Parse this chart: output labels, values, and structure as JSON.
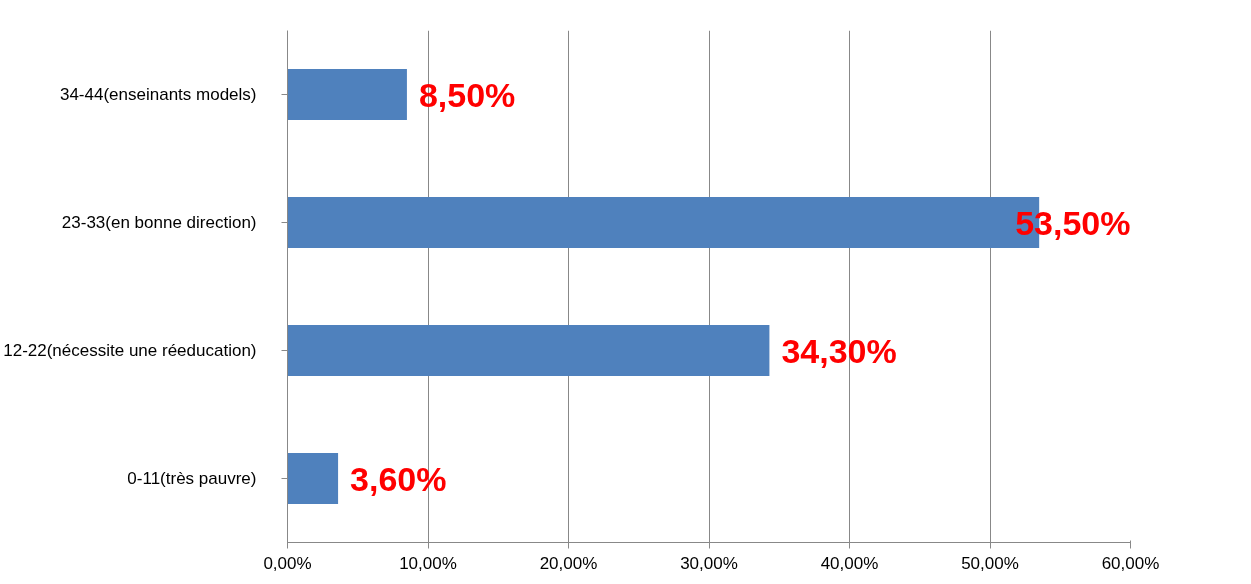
{
  "chart_data": {
    "type": "bar",
    "orientation": "horizontal",
    "categories": [
      "34-44(enseinants models)",
      "23-33(en bonne direction)",
      "12-22(nécessite une réeducation)",
      "0-11(très pauvre)"
    ],
    "values": [
      8.5,
      53.5,
      34.3,
      3.6
    ],
    "value_labels": [
      "8,50%",
      "53,50%",
      "34,30%",
      "3,60%"
    ],
    "color": "#4f81bd",
    "xlim": [
      0,
      60
    ],
    "xticks": [
      {
        "value": 0,
        "label": "0,00%"
      },
      {
        "value": 10,
        "label": "10,00%"
      },
      {
        "value": 20,
        "label": "20,00%"
      },
      {
        "value": 30,
        "label": "30,00%"
      },
      {
        "value": 40,
        "label": "40,00%"
      },
      {
        "value": 50,
        "label": "50,00%"
      },
      {
        "value": 60,
        "label": "60,00%"
      }
    ],
    "grid": "x"
  }
}
